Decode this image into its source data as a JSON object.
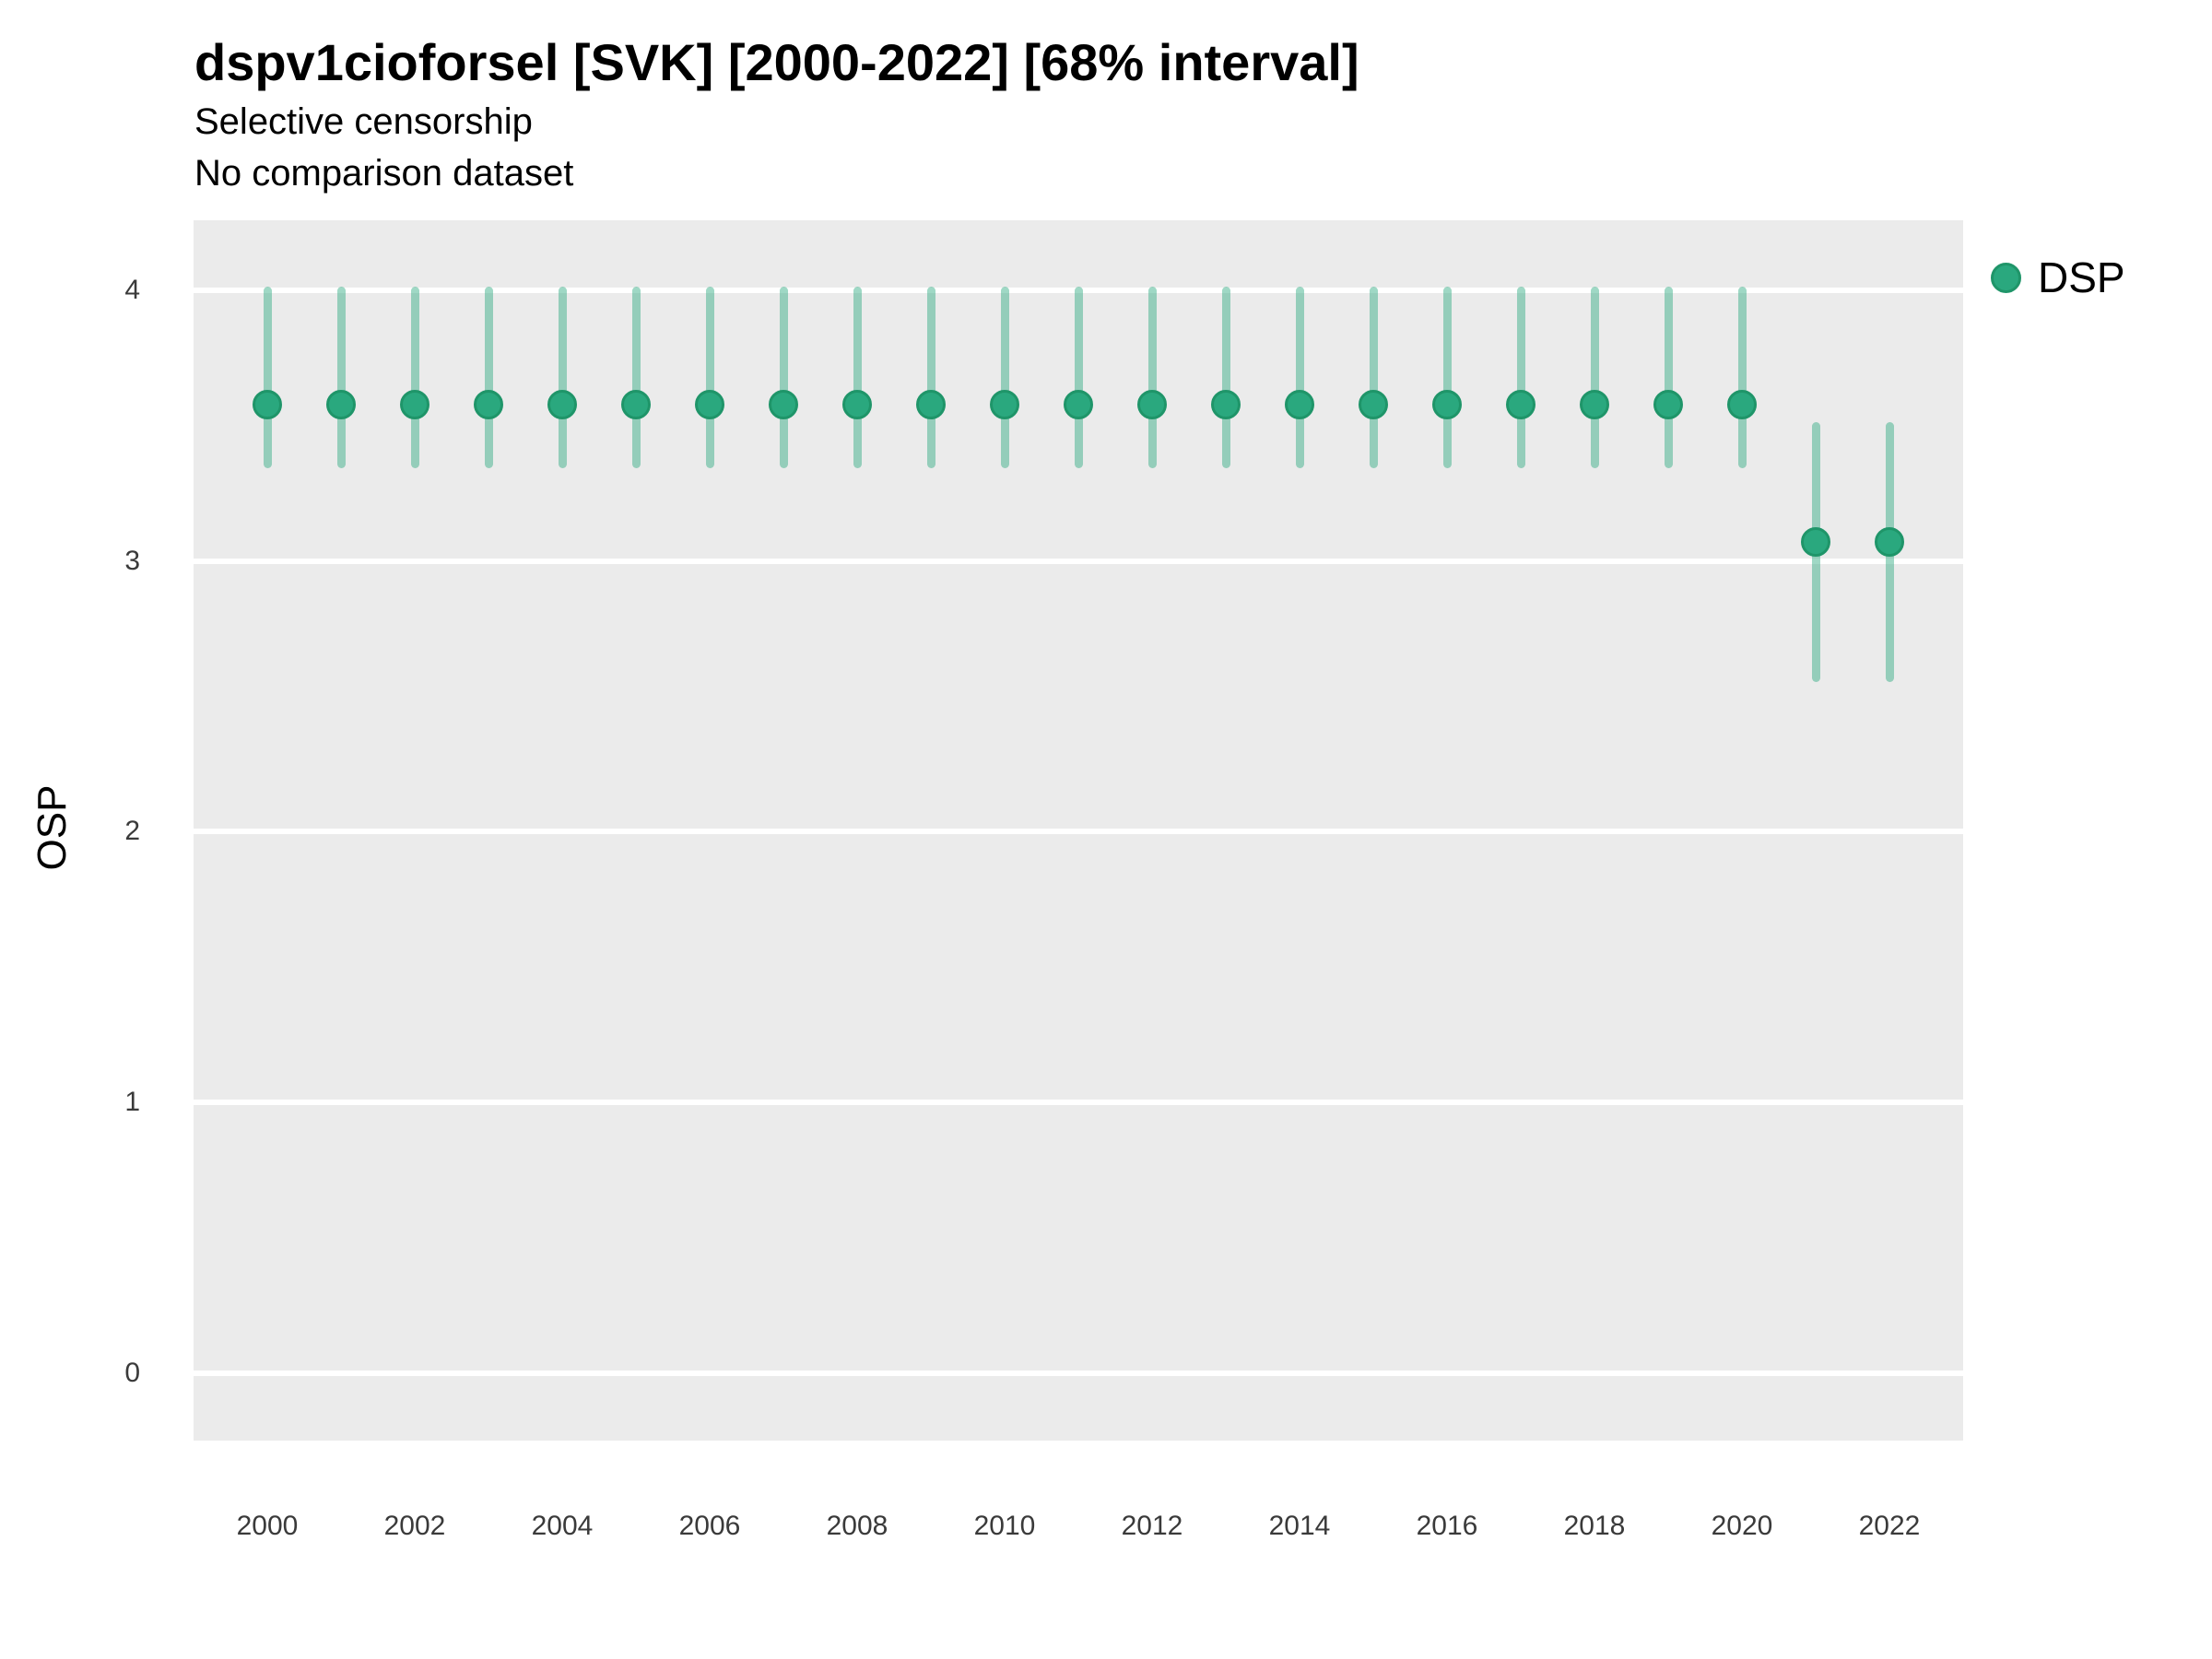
{
  "header": {
    "title": "dspv1cioforsel [SVK] [2000-2022] [68% interval]",
    "subtitle1": "Selective censorship",
    "subtitle2": "No comparison dataset"
  },
  "legend": {
    "position": "right",
    "items": [
      {
        "label": "DSP",
        "color": "#2AA87E"
      }
    ]
  },
  "colors": {
    "accent": "#2AA87E",
    "point_border": "#1F9569",
    "interval_alpha": 0.45,
    "panel_background": "#EBEBEB",
    "gridline": "#FFFFFF",
    "tick_text": "#3a3a3a",
    "title_text": "#000000"
  },
  "axes": {
    "y": {
      "label": "OSP",
      "ticks": [
        0,
        1,
        2,
        3,
        4
      ],
      "range": [
        -0.25,
        4.26
      ]
    },
    "x": {
      "label": "",
      "ticks": [
        2000,
        2002,
        2004,
        2006,
        2008,
        2010,
        2012,
        2014,
        2016,
        2018,
        2020,
        2022
      ],
      "range": [
        1999,
        2023
      ]
    }
  },
  "chart_data": {
    "type": "pointrange",
    "title": "dspv1cioforsel [SVK] [2000-2022] [68% interval]",
    "subtitle": [
      "Selective censorship",
      "No comparison dataset"
    ],
    "xlabel": "",
    "ylabel": "OSP",
    "ylim": [
      -0.25,
      4.26
    ],
    "xlim": [
      1999,
      2023
    ],
    "y_ticks": [
      0,
      1,
      2,
      3,
      4
    ],
    "x_ticks": [
      2000,
      2002,
      2004,
      2006,
      2008,
      2010,
      2012,
      2014,
      2016,
      2018,
      2020,
      2022
    ],
    "grid": "horizontal-major-only",
    "legend_position": "right",
    "interval_level": "68%",
    "series": [
      {
        "name": "DSP",
        "color": "#2AA87E",
        "points": [
          {
            "year": 2000,
            "value": 3.58,
            "lower": 3.36,
            "upper": 4.0
          },
          {
            "year": 2001,
            "value": 3.58,
            "lower": 3.36,
            "upper": 4.0
          },
          {
            "year": 2002,
            "value": 3.58,
            "lower": 3.36,
            "upper": 4.0
          },
          {
            "year": 2003,
            "value": 3.58,
            "lower": 3.36,
            "upper": 4.0
          },
          {
            "year": 2004,
            "value": 3.58,
            "lower": 3.36,
            "upper": 4.0
          },
          {
            "year": 2005,
            "value": 3.58,
            "lower": 3.36,
            "upper": 4.0
          },
          {
            "year": 2006,
            "value": 3.58,
            "lower": 3.36,
            "upper": 4.0
          },
          {
            "year": 2007,
            "value": 3.58,
            "lower": 3.36,
            "upper": 4.0
          },
          {
            "year": 2008,
            "value": 3.58,
            "lower": 3.36,
            "upper": 4.0
          },
          {
            "year": 2009,
            "value": 3.58,
            "lower": 3.36,
            "upper": 4.0
          },
          {
            "year": 2010,
            "value": 3.58,
            "lower": 3.36,
            "upper": 4.0
          },
          {
            "year": 2011,
            "value": 3.58,
            "lower": 3.36,
            "upper": 4.0
          },
          {
            "year": 2012,
            "value": 3.58,
            "lower": 3.36,
            "upper": 4.0
          },
          {
            "year": 2013,
            "value": 3.58,
            "lower": 3.36,
            "upper": 4.0
          },
          {
            "year": 2014,
            "value": 3.58,
            "lower": 3.36,
            "upper": 4.0
          },
          {
            "year": 2015,
            "value": 3.58,
            "lower": 3.36,
            "upper": 4.0
          },
          {
            "year": 2016,
            "value": 3.58,
            "lower": 3.36,
            "upper": 4.0
          },
          {
            "year": 2017,
            "value": 3.58,
            "lower": 3.36,
            "upper": 4.0
          },
          {
            "year": 2018,
            "value": 3.58,
            "lower": 3.36,
            "upper": 4.0
          },
          {
            "year": 2019,
            "value": 3.58,
            "lower": 3.36,
            "upper": 4.0
          },
          {
            "year": 2020,
            "value": 3.58,
            "lower": 3.36,
            "upper": 4.0
          },
          {
            "year": 2021,
            "value": 3.07,
            "lower": 2.57,
            "upper": 3.5
          },
          {
            "year": 2022,
            "value": 3.07,
            "lower": 2.57,
            "upper": 3.5
          }
        ]
      }
    ]
  }
}
